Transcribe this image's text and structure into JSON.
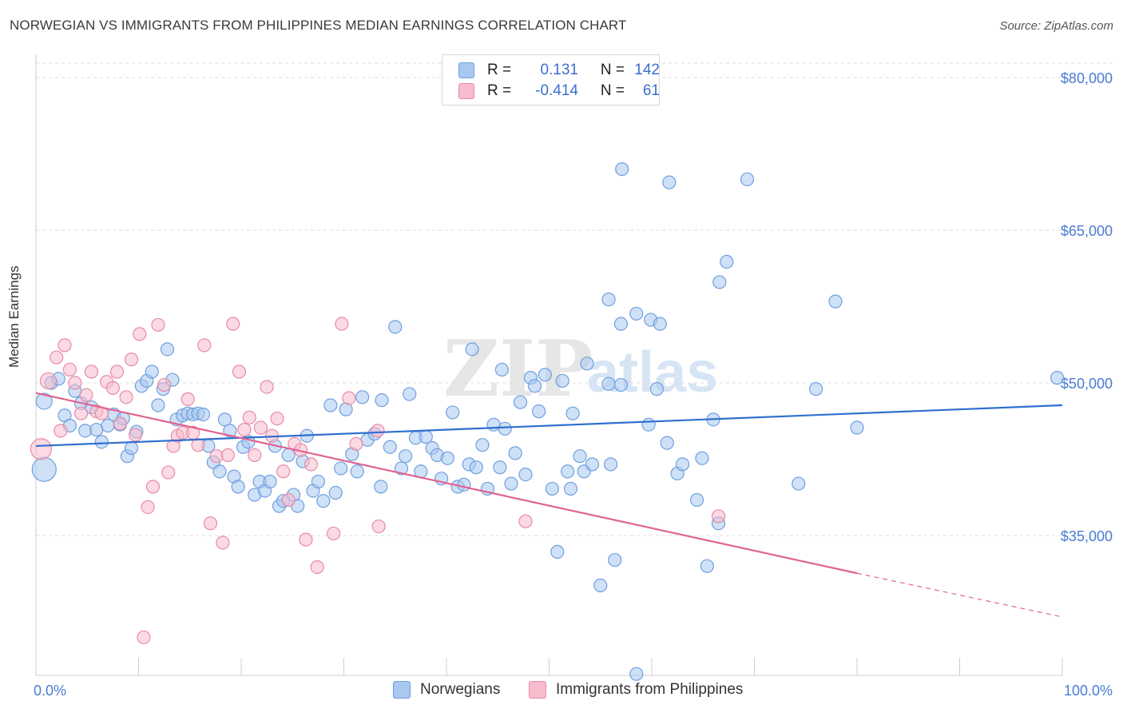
{
  "title": "NORWEGIAN VS IMMIGRANTS FROM PHILIPPINES MEDIAN EARNINGS CORRELATION CHART",
  "source": "Source: ZipAtlas.com",
  "watermark": "ZIPatlas",
  "legend": {
    "rows": [
      {
        "r_label": "R =",
        "r_value": "0.131",
        "n_label": "N =",
        "n_value": "142",
        "color": "#a8c8f0",
        "border": "#6f9fdf"
      },
      {
        "r_label": "R =",
        "r_value": "-0.414",
        "n_label": "N =",
        "n_value": "61",
        "color": "#f7bccd",
        "border": "#e88aa6"
      }
    ]
  },
  "chart_data": {
    "type": "scatter",
    "xlabel": "",
    "ylabel": "Median Earnings",
    "xlim": [
      0,
      100
    ],
    "ylim": [
      20000,
      85000
    ],
    "x_tick_labels": [
      "0.0%",
      "100.0%"
    ],
    "y_ticks": [
      35000,
      50000,
      65000,
      80000
    ],
    "y_tick_labels": [
      "$35,000",
      "$50,000",
      "$65,000",
      "$80,000"
    ],
    "grid": true,
    "series": [
      {
        "name": "Norwegians",
        "color": "#a8c8f0",
        "stroke": "#6f9fdf",
        "line_color": "#2f6fd0",
        "trend": {
          "x0": 0,
          "y0": 43800,
          "x1": 100,
          "y1": 47800
        },
        "points": [
          [
            0.8,
            48200,
            9
          ],
          [
            0.8,
            41500,
            14
          ],
          [
            1.5,
            50000,
            7
          ],
          [
            2.2,
            50400,
            7
          ],
          [
            2.8,
            46800,
            7
          ],
          [
            3.3,
            45800,
            7
          ],
          [
            3.8,
            49200,
            7
          ],
          [
            4.4,
            48000,
            7
          ],
          [
            4.8,
            45300,
            7
          ],
          [
            5.4,
            47600,
            7
          ],
          [
            5.9,
            45400,
            7
          ],
          [
            6.4,
            44200,
            7
          ],
          [
            7.0,
            45800,
            7
          ],
          [
            7.6,
            46900,
            7
          ],
          [
            8.2,
            45900,
            7
          ],
          [
            8.5,
            46500,
            7
          ],
          [
            8.9,
            42800,
            7
          ],
          [
            9.3,
            43600,
            7
          ],
          [
            9.8,
            45200,
            7
          ],
          [
            10.3,
            49700,
            7
          ],
          [
            10.8,
            50200,
            7
          ],
          [
            11.3,
            51100,
            7
          ],
          [
            11.9,
            47800,
            7
          ],
          [
            12.4,
            49400,
            7
          ],
          [
            12.8,
            53300,
            7
          ],
          [
            13.3,
            50300,
            7
          ],
          [
            13.7,
            46400,
            7
          ],
          [
            14.3,
            46800,
            7
          ],
          [
            14.8,
            47000,
            7
          ],
          [
            15.3,
            46900,
            7
          ],
          [
            15.8,
            47000,
            7
          ],
          [
            16.3,
            46900,
            7
          ],
          [
            16.8,
            43800,
            7
          ],
          [
            17.3,
            42200,
            7
          ],
          [
            17.9,
            41300,
            7
          ],
          [
            18.4,
            46400,
            7
          ],
          [
            18.9,
            45300,
            7
          ],
          [
            19.3,
            40800,
            7
          ],
          [
            19.7,
            39800,
            7
          ],
          [
            20.2,
            43700,
            7
          ],
          [
            20.7,
            44200,
            7
          ],
          [
            21.3,
            39000,
            7
          ],
          [
            21.8,
            40300,
            7
          ],
          [
            22.3,
            39400,
            7
          ],
          [
            22.8,
            40300,
            7
          ],
          [
            23.3,
            43800,
            7
          ],
          [
            23.7,
            37900,
            7
          ],
          [
            24.1,
            38400,
            7
          ],
          [
            24.6,
            42900,
            7
          ],
          [
            25.1,
            39000,
            7
          ],
          [
            25.5,
            37900,
            7
          ],
          [
            26.0,
            42300,
            7
          ],
          [
            26.4,
            44800,
            7
          ],
          [
            27.0,
            39400,
            7
          ],
          [
            27.5,
            40300,
            7
          ],
          [
            28.0,
            38400,
            7
          ],
          [
            28.7,
            47800,
            7
          ],
          [
            29.2,
            39200,
            7
          ],
          [
            29.7,
            41600,
            7
          ],
          [
            30.2,
            47400,
            7
          ],
          [
            30.8,
            43000,
            7
          ],
          [
            31.3,
            41300,
            7
          ],
          [
            31.8,
            48600,
            7
          ],
          [
            32.3,
            44400,
            7
          ],
          [
            33.0,
            45000,
            7
          ],
          [
            33.6,
            39800,
            7
          ],
          [
            33.7,
            48300,
            7
          ],
          [
            34.5,
            43700,
            7
          ],
          [
            35.0,
            55500,
            7
          ],
          [
            35.6,
            41600,
            7
          ],
          [
            36.0,
            42800,
            7
          ],
          [
            36.4,
            48900,
            7
          ],
          [
            37.0,
            44600,
            7
          ],
          [
            37.5,
            41300,
            7
          ],
          [
            38.0,
            44700,
            7
          ],
          [
            38.6,
            43600,
            7
          ],
          [
            39.1,
            42900,
            7
          ],
          [
            39.5,
            40600,
            7
          ],
          [
            40.1,
            42600,
            7
          ],
          [
            40.6,
            47100,
            7
          ],
          [
            41.1,
            39800,
            7
          ],
          [
            41.7,
            40000,
            7
          ],
          [
            42.2,
            42000,
            7
          ],
          [
            42.5,
            53300,
            7
          ],
          [
            42.9,
            41700,
            7
          ],
          [
            43.5,
            43900,
            7
          ],
          [
            44.0,
            39600,
            7
          ],
          [
            44.6,
            45900,
            7
          ],
          [
            45.2,
            41700,
            7
          ],
          [
            45.4,
            51300,
            7
          ],
          [
            45.7,
            45500,
            7
          ],
          [
            46.3,
            40100,
            7
          ],
          [
            46.7,
            43100,
            7
          ],
          [
            47.2,
            48100,
            7
          ],
          [
            47.7,
            41000,
            7
          ],
          [
            48.2,
            50500,
            7
          ],
          [
            48.6,
            49700,
            7
          ],
          [
            49.0,
            47200,
            7
          ],
          [
            49.6,
            50800,
            7
          ],
          [
            50.3,
            39600,
            7
          ],
          [
            50.8,
            33400,
            7
          ],
          [
            51.3,
            50200,
            7
          ],
          [
            51.8,
            41300,
            7
          ],
          [
            52.3,
            47000,
            7
          ],
          [
            53.0,
            42800,
            7
          ],
          [
            53.4,
            41300,
            7
          ],
          [
            53.7,
            51900,
            7
          ],
          [
            54.2,
            42000,
            7
          ],
          [
            55.0,
            30100,
            7
          ],
          [
            55.8,
            49900,
            7
          ],
          [
            56.4,
            32600,
            7
          ],
          [
            57.0,
            49800,
            7
          ],
          [
            58.5,
            21400,
            7
          ],
          [
            59.7,
            45900,
            7
          ],
          [
            60.5,
            49400,
            7
          ],
          [
            61.5,
            44100,
            7
          ],
          [
            62.5,
            41100,
            7
          ],
          [
            63.0,
            42000,
            7
          ],
          [
            64.4,
            38500,
            7
          ],
          [
            64.9,
            42600,
            7
          ],
          [
            65.4,
            32000,
            7
          ],
          [
            66.0,
            46400,
            7
          ],
          [
            66.5,
            36200,
            7
          ],
          [
            59.9,
            56200,
            7
          ],
          [
            58.5,
            56800,
            7
          ],
          [
            60.8,
            55800,
            7
          ],
          [
            57.1,
            71000,
            7
          ],
          [
            66.6,
            59900,
            7
          ],
          [
            67.3,
            61900,
            7
          ],
          [
            69.3,
            70000,
            7
          ],
          [
            61.7,
            69700,
            7
          ],
          [
            57.0,
            55800,
            7
          ],
          [
            55.8,
            58200,
            7
          ],
          [
            77.9,
            58000,
            7
          ],
          [
            76.0,
            49400,
            7
          ],
          [
            80.0,
            45600,
            7
          ],
          [
            99.5,
            50500,
            7
          ],
          [
            74.3,
            40100,
            7
          ],
          [
            56.0,
            42000,
            7
          ],
          [
            52.1,
            39600,
            7
          ]
        ]
      },
      {
        "name": "Immigrants from Philippines",
        "color": "#f7bccd",
        "stroke": "#e88aa6",
        "line_color": "#e0648f",
        "trend": {
          "x0": 0,
          "y0": 49000,
          "x1": 80,
          "y1": 31300
        },
        "trend_dashed": {
          "x0": 80,
          "y0": 31300,
          "x1": 100,
          "y1": 27000
        },
        "points": [
          [
            0.5,
            43500,
            12
          ],
          [
            1.2,
            50200,
            9
          ],
          [
            2.0,
            52500,
            7
          ],
          [
            2.4,
            45300,
            7
          ],
          [
            2.8,
            53700,
            7
          ],
          [
            3.3,
            51300,
            7
          ],
          [
            3.8,
            50000,
            7
          ],
          [
            4.4,
            47000,
            7
          ],
          [
            4.9,
            48800,
            7
          ],
          [
            5.4,
            51100,
            7
          ],
          [
            5.9,
            47200,
            7
          ],
          [
            6.4,
            47000,
            7
          ],
          [
            6.9,
            50100,
            7
          ],
          [
            7.5,
            49500,
            7
          ],
          [
            7.9,
            51100,
            7
          ],
          [
            8.2,
            46000,
            7
          ],
          [
            8.8,
            48600,
            7
          ],
          [
            9.3,
            52300,
            7
          ],
          [
            9.7,
            44900,
            7
          ],
          [
            10.1,
            54800,
            7
          ],
          [
            10.5,
            25000,
            7
          ],
          [
            10.9,
            37800,
            7
          ],
          [
            11.4,
            39800,
            7
          ],
          [
            11.9,
            55700,
            7
          ],
          [
            12.5,
            49800,
            7
          ],
          [
            12.9,
            41200,
            7
          ],
          [
            13.4,
            43800,
            7
          ],
          [
            13.8,
            44800,
            7
          ],
          [
            14.3,
            45100,
            7
          ],
          [
            14.8,
            48400,
            7
          ],
          [
            15.3,
            45100,
            7
          ],
          [
            15.8,
            43900,
            7
          ],
          [
            16.4,
            53700,
            7
          ],
          [
            17.0,
            36200,
            7
          ],
          [
            17.6,
            42800,
            7
          ],
          [
            18.2,
            34300,
            7
          ],
          [
            18.7,
            42900,
            7
          ],
          [
            19.2,
            55800,
            7
          ],
          [
            19.8,
            51100,
            7
          ],
          [
            20.3,
            45400,
            7
          ],
          [
            20.8,
            46600,
            7
          ],
          [
            21.3,
            42900,
            7
          ],
          [
            21.9,
            45600,
            7
          ],
          [
            22.5,
            49600,
            7
          ],
          [
            23.0,
            44800,
            7
          ],
          [
            23.5,
            46500,
            7
          ],
          [
            24.1,
            41300,
            7
          ],
          [
            24.6,
            38500,
            7
          ],
          [
            25.2,
            44000,
            7
          ],
          [
            25.8,
            43400,
            7
          ],
          [
            26.3,
            34600,
            7
          ],
          [
            26.8,
            42000,
            7
          ],
          [
            27.4,
            31900,
            7
          ],
          [
            29.0,
            35200,
            7
          ],
          [
            29.8,
            55800,
            7
          ],
          [
            30.5,
            48500,
            7
          ],
          [
            31.2,
            44000,
            7
          ],
          [
            33.3,
            45300,
            7
          ],
          [
            33.4,
            35900,
            7
          ],
          [
            47.7,
            36400,
            7
          ],
          [
            66.5,
            36900,
            7
          ]
        ]
      }
    ]
  },
  "bottom_legend": [
    "Norwegians",
    "Immigrants from Philippines"
  ]
}
